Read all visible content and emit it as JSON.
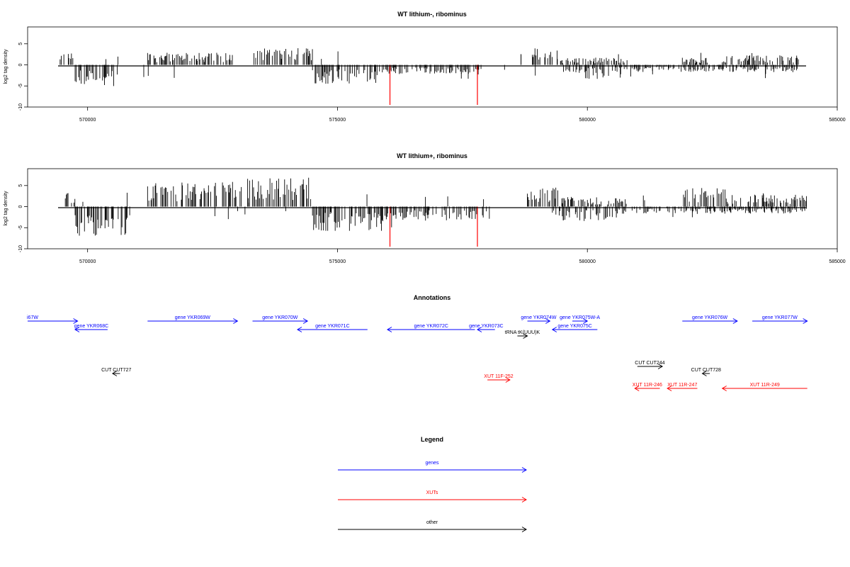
{
  "colors": {
    "gene": "#0000ff",
    "xut": "#ff0000",
    "other": "#000000",
    "highlight": "#ff0000"
  },
  "chart_data": [
    {
      "type": "bar",
      "title": "WT lithium-, ribominus",
      "ylabel": "log2 tag density",
      "xlim": [
        568800,
        585000
      ],
      "ylim": [
        -10,
        9
      ],
      "x_ticks": [
        570000,
        575000,
        580000,
        585000
      ],
      "x_tick_labels": [
        "570000",
        "575000",
        "580000",
        "585000"
      ],
      "y_ticks": [
        5,
        0,
        -5,
        -10
      ],
      "y_tick_labels": [
        "5",
        "0",
        "-5",
        "-10"
      ],
      "highlight_x": [
        576050,
        577800
      ],
      "highlight_value": -9.5,
      "positive_segments": [
        {
          "x": [
            569450,
            569750
          ],
          "level": 2.5
        },
        {
          "x": [
            571200,
            572900
          ],
          "level": 2.5
        },
        {
          "x": [
            573300,
            574500
          ],
          "level": 4
        },
        {
          "x": [
            578900,
            579400
          ],
          "level": 3.5
        },
        {
          "x": [
            579400,
            580800
          ],
          "level": 1.5
        },
        {
          "x": [
            581900,
            582500
          ],
          "level": 1.5
        },
        {
          "x": [
            582700,
            584300
          ],
          "level": 2
        }
      ],
      "negative_segments": [
        {
          "x": [
            569750,
            570600
          ],
          "level": -4.5
        },
        {
          "x": [
            574500,
            576000
          ],
          "level": -4
        },
        {
          "x": [
            576000,
            577900
          ],
          "level": -2
        },
        {
          "x": [
            579500,
            580400
          ],
          "level": -3
        },
        {
          "x": [
            580500,
            584200
          ],
          "level": -1.5
        }
      ]
    },
    {
      "type": "bar",
      "title": "WT lithium+, ribominus",
      "ylabel": "log2 tag density",
      "xlim": [
        568800,
        585000
      ],
      "ylim": [
        -10,
        9
      ],
      "x_ticks": [
        570000,
        575000,
        580000,
        585000
      ],
      "x_tick_labels": [
        "570000",
        "575000",
        "580000",
        "585000"
      ],
      "y_ticks": [
        5,
        0,
        -5,
        -10
      ],
      "y_tick_labels": [
        "5",
        "0",
        "-5",
        "-10"
      ],
      "highlight_x": [
        576050,
        577800
      ],
      "highlight_value": -9.5,
      "positive_segments": [
        {
          "x": [
            569450,
            569750
          ],
          "level": 3
        },
        {
          "x": [
            571200,
            572900
          ],
          "level": 5
        },
        {
          "x": [
            572900,
            574500
          ],
          "level": 6
        },
        {
          "x": [
            578800,
            579500
          ],
          "level": 4
        },
        {
          "x": [
            579500,
            580800
          ],
          "level": 2
        },
        {
          "x": [
            581900,
            582800
          ],
          "level": 4
        },
        {
          "x": [
            582800,
            584400
          ],
          "level": 2.5
        }
      ],
      "negative_segments": [
        {
          "x": [
            569750,
            570800
          ],
          "level": -6
        },
        {
          "x": [
            574500,
            576100
          ],
          "level": -5
        },
        {
          "x": [
            576100,
            578000
          ],
          "level": -3
        },
        {
          "x": [
            579300,
            580600
          ],
          "level": -3
        },
        {
          "x": [
            580600,
            584400
          ],
          "level": -1.5
        }
      ]
    }
  ],
  "annotations": {
    "title": "Annotations",
    "features": [
      {
        "label": "i67W",
        "type": "gene",
        "x1": 568800,
        "x2": 569800,
        "dir": "right",
        "row": 0
      },
      {
        "label": "gene YKR068C",
        "type": "gene",
        "x1": 569750,
        "x2": 570400,
        "dir": "left",
        "row": 1
      },
      {
        "label": "gene YKR069W",
        "type": "gene",
        "x1": 571200,
        "x2": 573000,
        "dir": "right",
        "row": 0
      },
      {
        "label": "gene YKR070W",
        "type": "gene",
        "x1": 573300,
        "x2": 574400,
        "dir": "right",
        "row": 0
      },
      {
        "label": "gene YKR071C",
        "type": "gene",
        "x1": 574200,
        "x2": 575600,
        "dir": "left",
        "row": 1
      },
      {
        "label": "gene YKR072C",
        "type": "gene",
        "x1": 576000,
        "x2": 577750,
        "dir": "left",
        "row": 1
      },
      {
        "label": "gene YKR073C",
        "type": "gene",
        "x1": 577800,
        "x2": 578150,
        "dir": "left",
        "row": 1
      },
      {
        "label": "tRNA tK(UUU)K",
        "type": "other",
        "x1": 578600,
        "x2": 578800,
        "dir": "right",
        "row": 2
      },
      {
        "label": "gene YKR074W",
        "type": "gene",
        "x1": 578800,
        "x2": 579250,
        "dir": "right",
        "row": 0
      },
      {
        "label": "gene YKR075W-A",
        "type": "gene",
        "x1": 579700,
        "x2": 580000,
        "dir": "right",
        "row": 0
      },
      {
        "label": "gene YKR075C",
        "type": "gene",
        "x1": 579300,
        "x2": 580200,
        "dir": "left",
        "row": 1
      },
      {
        "label": "gene YKR076W",
        "type": "gene",
        "x1": 581900,
        "x2": 583000,
        "dir": "right",
        "row": 0
      },
      {
        "label": "gene YKR077W",
        "type": "gene",
        "x1": 583300,
        "x2": 584400,
        "dir": "right",
        "row": 0
      },
      {
        "label": "CUT CUT727",
        "type": "other",
        "x1": 570500,
        "x2": 570650,
        "dir": "left",
        "row": 3
      },
      {
        "label": "CUT CUT244",
        "type": "other",
        "x1": 581000,
        "x2": 581500,
        "dir": "right",
        "row": 4
      },
      {
        "label": "CUT CUT728",
        "type": "other",
        "x1": 582300,
        "x2": 582450,
        "dir": "left",
        "row": 3
      },
      {
        "label": "XUT 11F-252",
        "type": "xut",
        "x1": 578000,
        "x2": 578450,
        "dir": "right",
        "row": 5
      },
      {
        "label": "XUT 11R-246",
        "type": "xut",
        "x1": 580950,
        "x2": 581450,
        "dir": "left",
        "row": 6
      },
      {
        "label": "XUT 11R-247",
        "type": "xut",
        "x1": 581600,
        "x2": 582200,
        "dir": "left",
        "row": 6
      },
      {
        "label": "XUT 11R-249",
        "type": "xut",
        "x1": 582700,
        "x2": 584400,
        "dir": "left",
        "row": 6
      }
    ]
  },
  "legend": {
    "title": "Legend",
    "items": [
      {
        "label": "genes",
        "type": "gene"
      },
      {
        "label": "XUTs",
        "type": "xut"
      },
      {
        "label": "other",
        "type": "other"
      }
    ]
  }
}
